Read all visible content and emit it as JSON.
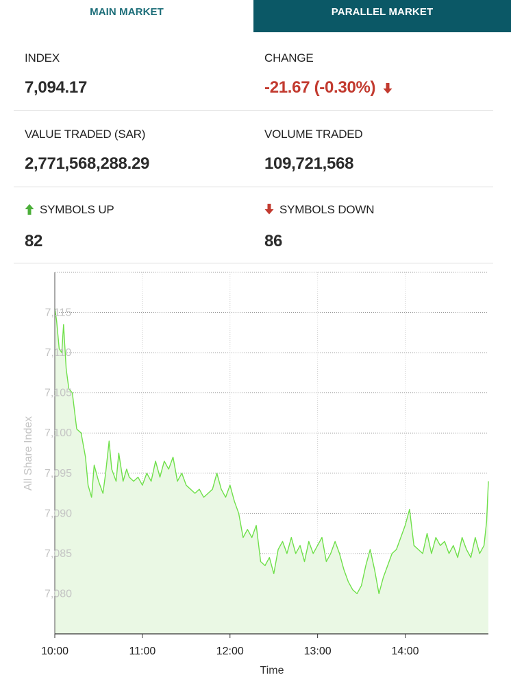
{
  "tabs": [
    {
      "label": "MAIN MARKET",
      "active": true
    },
    {
      "label": "PARALLEL MARKET",
      "active": false
    }
  ],
  "stats": {
    "index": {
      "label": "INDEX",
      "value": "7,094.17"
    },
    "change": {
      "label": "CHANGE",
      "value": "-21.67 (-0.30%)",
      "direction": "down"
    },
    "value_traded": {
      "label": "VALUE TRADED (SAR)",
      "value": "2,771,568,288.29"
    },
    "volume_traded": {
      "label": "VOLUME TRADED",
      "value": "109,721,568"
    },
    "symbols_up": {
      "label": "SYMBOLS UP",
      "value": "82"
    },
    "symbols_down": {
      "label": "SYMBOLS DOWN",
      "value": "86"
    }
  },
  "colors": {
    "active_tab_text": "#1d6e79",
    "inactive_tab_bg": "#0b5866",
    "down": "#c23a2f",
    "up": "#4caf3a",
    "line": "#6fe04a",
    "area": "#eaf8e4"
  },
  "icons": {
    "down_arrow": "arrow-down-icon",
    "up_arrow": "arrow-up-icon"
  },
  "chart_data": {
    "type": "area",
    "title": "",
    "xlabel": "Time",
    "ylabel": "All Share Index",
    "xlim": [
      10.0,
      14.95
    ],
    "ylim": [
      7075,
      7120
    ],
    "x_ticks": [
      10.0,
      11.0,
      12.0,
      13.0,
      14.0
    ],
    "x_tick_labels": [
      "10:00",
      "11:00",
      "12:00",
      "13:00",
      "14:00"
    ],
    "y_ticks": [
      7080,
      7085,
      7090,
      7095,
      7100,
      7105,
      7110,
      7115
    ],
    "y_tick_labels": [
      "7,080",
      "7,085",
      "7,090",
      "7,095",
      "7,100",
      "7,105",
      "7,110",
      "7,115"
    ],
    "grid": true,
    "series": [
      {
        "x": [
          10.0,
          10.02,
          10.05,
          10.08,
          10.1,
          10.13,
          10.16,
          10.2,
          10.25,
          10.3,
          10.35,
          10.38,
          10.42,
          10.45,
          10.5,
          10.55,
          10.58,
          10.62,
          10.65,
          10.7,
          10.73,
          10.78,
          10.82,
          10.85,
          10.9,
          10.95,
          11.0,
          11.05,
          11.1,
          11.15,
          11.2,
          11.25,
          11.3,
          11.35,
          11.4,
          11.45,
          11.5,
          11.55,
          11.6,
          11.65,
          11.7,
          11.75,
          11.8,
          11.85,
          11.9,
          11.95,
          12.0,
          12.05,
          12.1,
          12.15,
          12.2,
          12.25,
          12.3,
          12.35,
          12.4,
          12.45,
          12.5,
          12.55,
          12.6,
          12.65,
          12.7,
          12.75,
          12.8,
          12.85,
          12.9,
          12.95,
          13.0,
          13.05,
          13.1,
          13.15,
          13.2,
          13.25,
          13.3,
          13.35,
          13.4,
          13.45,
          13.5,
          13.55,
          13.6,
          13.65,
          13.7,
          13.75,
          13.8,
          13.85,
          13.9,
          13.95,
          14.0,
          14.05,
          14.1,
          14.15,
          14.2,
          14.25,
          14.3,
          14.35,
          14.4,
          14.45,
          14.5,
          14.55,
          14.6,
          14.65,
          14.7,
          14.75,
          14.8,
          14.85,
          14.9,
          14.93,
          14.95
        ],
        "values": [
          7115.5,
          7114.0,
          7110.5,
          7110.0,
          7113.5,
          7108.0,
          7105.5,
          7105.0,
          7100.5,
          7100.0,
          7097.0,
          7093.5,
          7092.0,
          7096.0,
          7094.0,
          7092.5,
          7095.0,
          7099.0,
          7095.5,
          7094.0,
          7097.5,
          7094.0,
          7095.5,
          7094.5,
          7094.0,
          7094.5,
          7093.5,
          7095.0,
          7094.0,
          7096.5,
          7094.5,
          7096.5,
          7095.5,
          7097.0,
          7094.0,
          7095.0,
          7093.5,
          7093.0,
          7092.5,
          7093.0,
          7092.0,
          7092.5,
          7093.0,
          7095.0,
          7093.0,
          7092.0,
          7093.5,
          7091.5,
          7090.0,
          7087.0,
          7088.0,
          7087.0,
          7088.5,
          7084.0,
          7083.5,
          7084.5,
          7082.5,
          7085.5,
          7086.5,
          7085.0,
          7087.0,
          7085.0,
          7086.0,
          7084.0,
          7086.5,
          7085.0,
          7086.0,
          7087.0,
          7084.0,
          7085.0,
          7086.5,
          7085.0,
          7083.0,
          7081.5,
          7080.5,
          7080.0,
          7081.0,
          7083.5,
          7085.5,
          7083.0,
          7080.0,
          7082.0,
          7083.5,
          7085.0,
          7085.5,
          7087.0,
          7088.5,
          7090.5,
          7086.0,
          7085.5,
          7085.0,
          7087.5,
          7085.0,
          7087.0,
          7086.0,
          7086.5,
          7085.0,
          7086.0,
          7084.5,
          7087.0,
          7085.5,
          7084.5,
          7087.0,
          7085.0,
          7086.0,
          7089.0,
          7094.0
        ]
      }
    ]
  }
}
